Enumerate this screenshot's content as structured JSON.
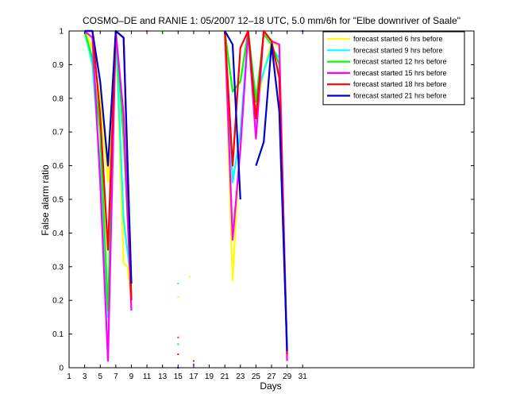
{
  "chart_data": {
    "type": "line",
    "title": "COSMO–DE and RANIE 1: 05/2007 12–18 UTC, 5.0 mm/6h for \"Elbe downriver of Saale\"",
    "xlabel": "Days",
    "ylabel": "False alarm ratio",
    "xlim": [
      1,
      53
    ],
    "ylim": [
      0,
      1
    ],
    "xticks": [
      1,
      3,
      5,
      7,
      9,
      11,
      13,
      15,
      17,
      19,
      21,
      23,
      25,
      27,
      29,
      31
    ],
    "yticks": [
      0,
      0.1,
      0.2,
      0.3,
      0.4,
      0.5,
      0.6,
      0.7,
      0.8,
      0.9,
      1
    ],
    "grid": false,
    "legend_position": "top-right",
    "series": [
      {
        "name": "forecast started 6 hrs before",
        "color": "#ffff00",
        "points": [
          [
            3,
            1
          ],
          [
            4,
            0.95
          ],
          [
            5,
            0.8
          ],
          [
            6,
            0.55
          ],
          [
            7,
            1
          ],
          [
            8,
            0.31
          ],
          [
            8.5,
            0.3
          ],
          [
            9,
            0.2
          ],
          null,
          [
            15,
            0.21
          ],
          null,
          [
            16.5,
            0.27
          ],
          null,
          [
            21,
            1
          ],
          [
            22,
            0.26
          ],
          [
            23,
            0.68
          ],
          [
            24,
            1
          ],
          [
            25,
            0.76
          ],
          [
            26,
            0.88
          ],
          [
            27,
            0.97
          ],
          [
            28,
            0.95
          ],
          [
            29,
            0.03
          ]
        ]
      },
      {
        "name": "forecast started 9 hrs before",
        "color": "#00ffff",
        "points": [
          [
            3,
            1
          ],
          [
            4,
            0.9
          ],
          [
            5,
            0.6
          ],
          [
            6,
            0.15
          ],
          [
            7,
            1
          ],
          [
            8,
            0.44
          ],
          [
            9,
            0.25
          ],
          null,
          [
            15,
            0.25
          ],
          null,
          [
            21,
            1
          ],
          [
            22,
            0.55
          ],
          [
            23,
            0.7
          ],
          [
            24,
            1
          ],
          [
            25,
            0.8
          ],
          [
            26,
            0.88
          ],
          [
            27,
            0.95
          ],
          [
            28,
            0.92
          ],
          [
            29,
            0.05
          ]
        ]
      },
      {
        "name": "forecast started 12 hrs before",
        "color": "#00ff00",
        "points": [
          [
            3,
            1
          ],
          [
            4,
            0.92
          ],
          [
            5,
            0.7
          ],
          [
            6,
            0.17
          ],
          [
            7,
            1
          ],
          [
            8,
            0.68
          ],
          [
            9,
            0.21
          ],
          null,
          [
            13,
            1
          ],
          null,
          [
            15,
            0.07
          ],
          null,
          [
            21,
            1
          ],
          [
            22,
            0.82
          ],
          [
            23,
            0.85
          ],
          [
            24,
            1
          ],
          [
            25,
            0.79
          ],
          [
            26,
            0.99
          ],
          [
            27,
            0.96
          ],
          [
            28,
            0.9
          ],
          [
            29,
            0.05
          ]
        ]
      },
      {
        "name": "forecast started 15 hrs before",
        "color": "#ff00ff",
        "points": [
          [
            3,
            1
          ],
          [
            4,
            0.98
          ],
          [
            5,
            0.55
          ],
          [
            6,
            0.02
          ],
          [
            7,
            1
          ],
          [
            8,
            0.75
          ],
          [
            9,
            0.17
          ],
          null,
          [
            15,
            0.09
          ],
          null,
          [
            17,
            0.01
          ],
          null,
          [
            21,
            1
          ],
          [
            22,
            0.38
          ],
          [
            23,
            0.65
          ],
          [
            24,
            1
          ],
          [
            25,
            0.68
          ],
          [
            26,
            1
          ],
          [
            27,
            0.97
          ],
          [
            28,
            0.96
          ],
          [
            29,
            0.02
          ]
        ]
      },
      {
        "name": "forecast started 18 hrs before",
        "color": "#ff0000",
        "points": [
          [
            3,
            1
          ],
          [
            4,
            1
          ],
          [
            5,
            0.75
          ],
          [
            6,
            0.35
          ],
          [
            7,
            1
          ],
          [
            8,
            0.98
          ],
          [
            9,
            0.2
          ],
          null,
          [
            11,
            1
          ],
          null,
          [
            15,
            0.04
          ],
          null,
          [
            17,
            0.02
          ],
          null,
          [
            21,
            1
          ],
          [
            22,
            0.6
          ],
          [
            23,
            0.95
          ],
          [
            24,
            1
          ],
          [
            25,
            0.74
          ],
          [
            26,
            1
          ],
          [
            27,
            0.97
          ],
          [
            28,
            0.86
          ],
          [
            29,
            0.04
          ]
        ]
      },
      {
        "name": "forecast started 21 hrs before",
        "color": "#0000cc",
        "points": [
          [
            3,
            1
          ],
          [
            4,
            1
          ],
          [
            5,
            0.85
          ],
          [
            6,
            0.6
          ],
          [
            7,
            1
          ],
          [
            8,
            0.98
          ],
          [
            9,
            0.25
          ],
          null,
          [
            15,
            0.0
          ],
          null,
          [
            21,
            1
          ],
          [
            22,
            0.96
          ],
          [
            23,
            0.5
          ],
          null,
          [
            25,
            0.6
          ],
          [
            26,
            0.67
          ],
          [
            27,
            0.96
          ],
          [
            28,
            0.76
          ],
          [
            29,
            0.05
          ],
          null,
          [
            31,
            1
          ]
        ]
      }
    ]
  }
}
